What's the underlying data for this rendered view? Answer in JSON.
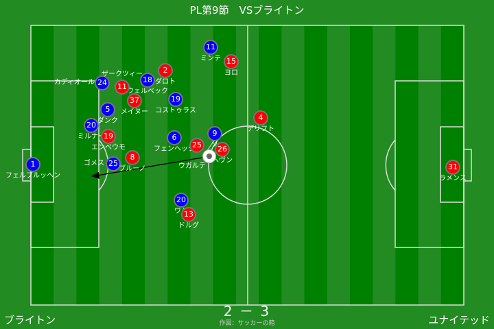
{
  "title": "PL第9節　VSブライトン",
  "home_team": "ブライトン",
  "away_team": "ユナイテッド",
  "score": "2 － 3",
  "credit": "作図：サッカーの箱",
  "colors": {
    "home": "#0000ff",
    "away": "#ff0000",
    "pitch_dark": "#008000",
    "pitch_light": "#228b22"
  },
  "players": [
    {
      "team": "home",
      "number": "1",
      "name": "フェルブルッヘン"
    },
    {
      "team": "home",
      "number": "24",
      "name": "カディオール"
    },
    {
      "team": "home",
      "number": "5",
      "name": "ダンク"
    },
    {
      "team": "home",
      "number": "20",
      "name": "ミルナー"
    },
    {
      "team": "home",
      "number": "25",
      "name": "ゴメス"
    },
    {
      "team": "home",
      "number": "18",
      "name": "ウェルベック"
    },
    {
      "team": "home",
      "number": "19",
      "name": "コストゥラス"
    },
    {
      "team": "home",
      "number": "6",
      "name": "フェンヘック"
    },
    {
      "team": "home",
      "number": "9",
      "name": "ソ"
    },
    {
      "team": "home",
      "number": "11",
      "name": "ミンテ"
    },
    {
      "team": "home",
      "number": "20",
      "name": "ワト"
    },
    {
      "team": "away",
      "number": "31",
      "name": "ラメンス"
    },
    {
      "team": "away",
      "number": "4",
      "name": "デリフト"
    },
    {
      "team": "away",
      "number": "26",
      "name": "ヘヴン"
    },
    {
      "team": "away",
      "number": "25",
      "name": "ウガルテ"
    },
    {
      "team": "away",
      "number": "15",
      "name": "ヨロ"
    },
    {
      "team": "away",
      "number": "2",
      "name": "ダロト"
    },
    {
      "team": "away",
      "number": "11",
      "name": "ザークツィー"
    },
    {
      "team": "away",
      "number": "37",
      "name": "メイヌー"
    },
    {
      "team": "away",
      "number": "19",
      "name": "エンベウモ"
    },
    {
      "team": "away",
      "number": "8",
      "name": "ブルーノ"
    },
    {
      "team": "away",
      "number": "13",
      "name": "ドルグ"
    }
  ]
}
